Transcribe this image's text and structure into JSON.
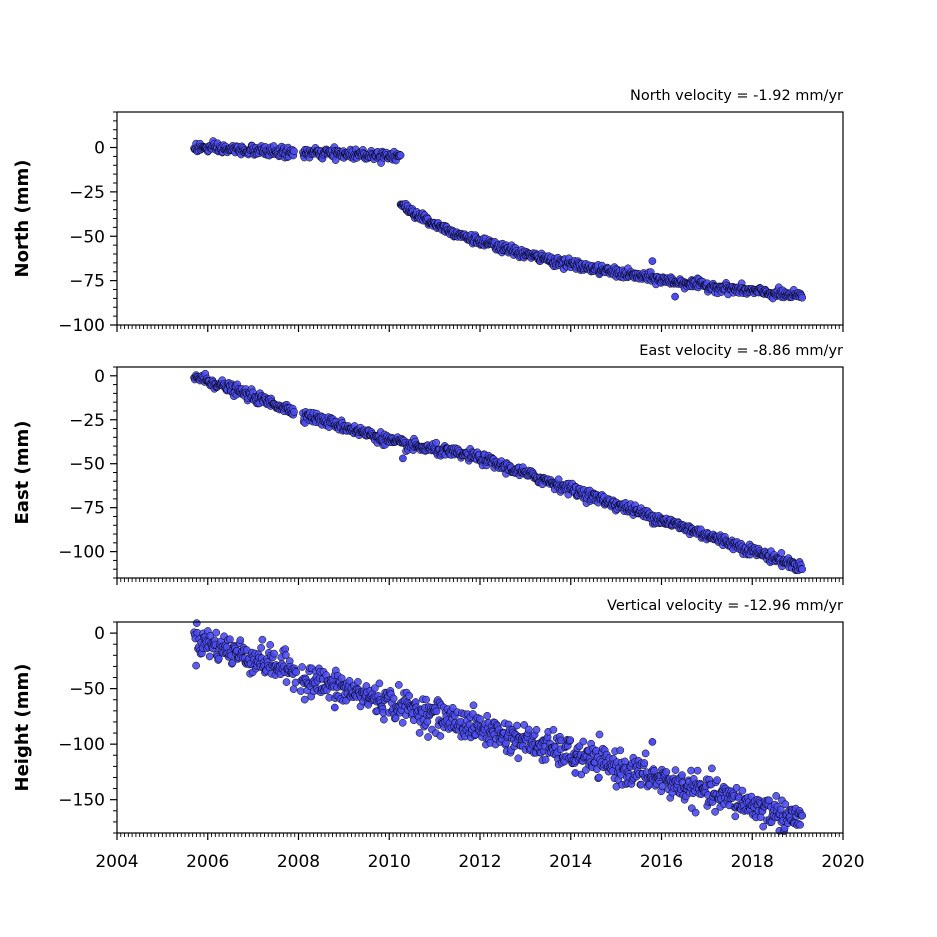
{
  "chart_data": [
    {
      "type": "scatter",
      "title": "North velocity = -1.92 mm/yr",
      "ylabel": "North (mm)",
      "xlim": [
        2004,
        2020
      ],
      "ylim": [
        -100,
        20
      ],
      "yticks": [
        0,
        -25,
        -50,
        -75,
        -100
      ],
      "ytick_labels": [
        "0",
        "−25",
        "−50",
        "−75",
        "−100"
      ],
      "x_tick_labels_shown": false,
      "segments": [
        {
          "x_start": 2005.7,
          "x_end": 2007.9,
          "y_start": 0.0,
          "y_end": -3.0,
          "noise": 1.4
        },
        {
          "x_start": 2008.1,
          "x_end": 2010.25,
          "y_start": -3.0,
          "y_end": -4.5,
          "noise": 1.4
        },
        {
          "x_start": 2010.25,
          "x_end": 2019.1,
          "y_start": -32.0,
          "y_end": -84.0,
          "noise": 1.3,
          "decay": "log"
        }
      ],
      "outliers": [
        {
          "x": 2015.8,
          "y": -64
        },
        {
          "x": 2016.3,
          "y": -84
        }
      ],
      "point_color": "#4b4bf0",
      "edge_color": "#000000",
      "grid": false
    },
    {
      "type": "scatter",
      "title": "East velocity = -8.86 mm/yr",
      "ylabel": "East (mm)",
      "xlim": [
        2004,
        2020
      ],
      "ylim": [
        -115,
        5
      ],
      "yticks": [
        0,
        -25,
        -50,
        -75,
        -100
      ],
      "ytick_labels": [
        "0",
        "−25",
        "−50",
        "−75",
        "−100"
      ],
      "x_tick_labels_shown": false,
      "segments": [
        {
          "x_start": 2005.7,
          "x_end": 2007.9,
          "y_start": 0.0,
          "y_end": -20.0,
          "noise": 1.5
        },
        {
          "x_start": 2008.1,
          "x_end": 2010.3,
          "y_start": -22.0,
          "y_end": -39.0,
          "noise": 1.5
        },
        {
          "x_start": 2010.3,
          "x_end": 2011.9,
          "y_start": -39.0,
          "y_end": -46.0,
          "noise": 1.5
        },
        {
          "x_start": 2011.9,
          "x_end": 2019.1,
          "y_start": -46.0,
          "y_end": -109.0,
          "noise": 1.5
        }
      ],
      "outliers": [
        {
          "x": 2010.3,
          "y": -47
        }
      ],
      "point_color": "#4b4bf0",
      "edge_color": "#000000",
      "grid": false
    },
    {
      "type": "scatter",
      "title": "Vertical velocity = -12.96 mm/yr",
      "ylabel": "Height (mm)",
      "xlim": [
        2004,
        2020
      ],
      "ylim": [
        -180,
        10
      ],
      "yticks": [
        0,
        -50,
        -100,
        -150
      ],
      "ytick_labels": [
        "0",
        "−50",
        "−100",
        "−150"
      ],
      "x_tick_labels_shown": true,
      "xticks": [
        2004,
        2006,
        2008,
        2010,
        2012,
        2014,
        2016,
        2018,
        2020
      ],
      "xtick_labels": [
        "2004",
        "2006",
        "2008",
        "2010",
        "2012",
        "2014",
        "2016",
        "2018",
        "2020"
      ],
      "segments": [
        {
          "x_start": 2005.7,
          "x_end": 2007.95,
          "y_start": -5.0,
          "y_end": -35.0,
          "noise": 7.0
        },
        {
          "x_start": 2008.05,
          "x_end": 2019.1,
          "y_start": -40.0,
          "y_end": -168.0,
          "noise": 7.0
        }
      ],
      "outliers": [
        {
          "x": 2015.8,
          "y": -98
        },
        {
          "x": 2014.1,
          "y": -126
        },
        {
          "x": 2008.8,
          "y": -67
        }
      ],
      "point_color": "#4b4bf0",
      "edge_color": "#000000",
      "grid": false
    }
  ]
}
